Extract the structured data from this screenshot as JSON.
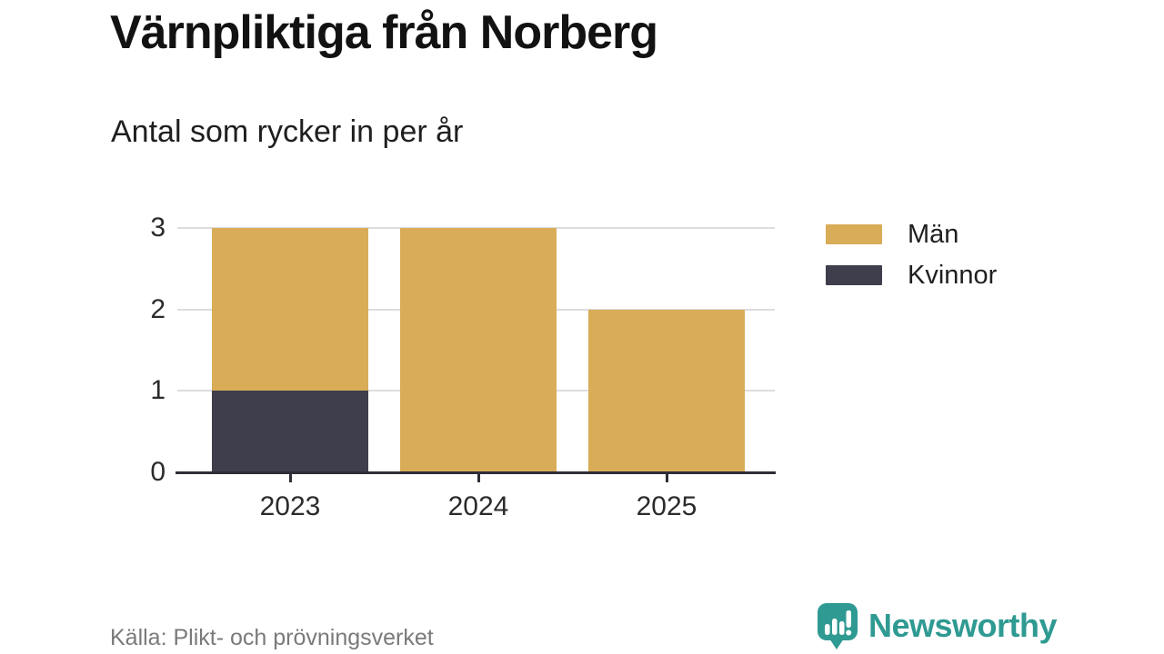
{
  "header": {
    "title": "Värnpliktiga från Norberg",
    "subtitle": "Antal som rycker in per år"
  },
  "footer": {
    "source": "Källa: Plikt- och prövningsverket",
    "logo_text": "Newsworthy"
  },
  "colors": {
    "men": "#d9ac58",
    "women": "#3f3e4c",
    "axis": "#2e2e38",
    "grid": "#dddddd",
    "tick_label": "#2b2b2b",
    "source_text": "#7a7a7a",
    "logo_teal": "#2f9a92"
  },
  "chart_data": {
    "type": "bar",
    "stacked": true,
    "title": "Värnpliktiga från Norberg",
    "subtitle": "Antal som rycker in per år",
    "categories": [
      "2023",
      "2024",
      "2025"
    ],
    "series": [
      {
        "name": "Män",
        "color": "#d9ac58",
        "values": [
          2,
          3,
          2
        ]
      },
      {
        "name": "Kvinnor",
        "color": "#3f3e4c",
        "values": [
          1,
          0,
          0
        ]
      }
    ],
    "stack_order": [
      "Kvinnor",
      "Män"
    ],
    "totals": [
      3,
      3,
      2
    ],
    "xlabel": "",
    "ylabel": "",
    "ylim": [
      0,
      3
    ],
    "yticks": [
      0,
      1,
      2,
      3
    ],
    "grid": true,
    "legend_position": "right"
  }
}
